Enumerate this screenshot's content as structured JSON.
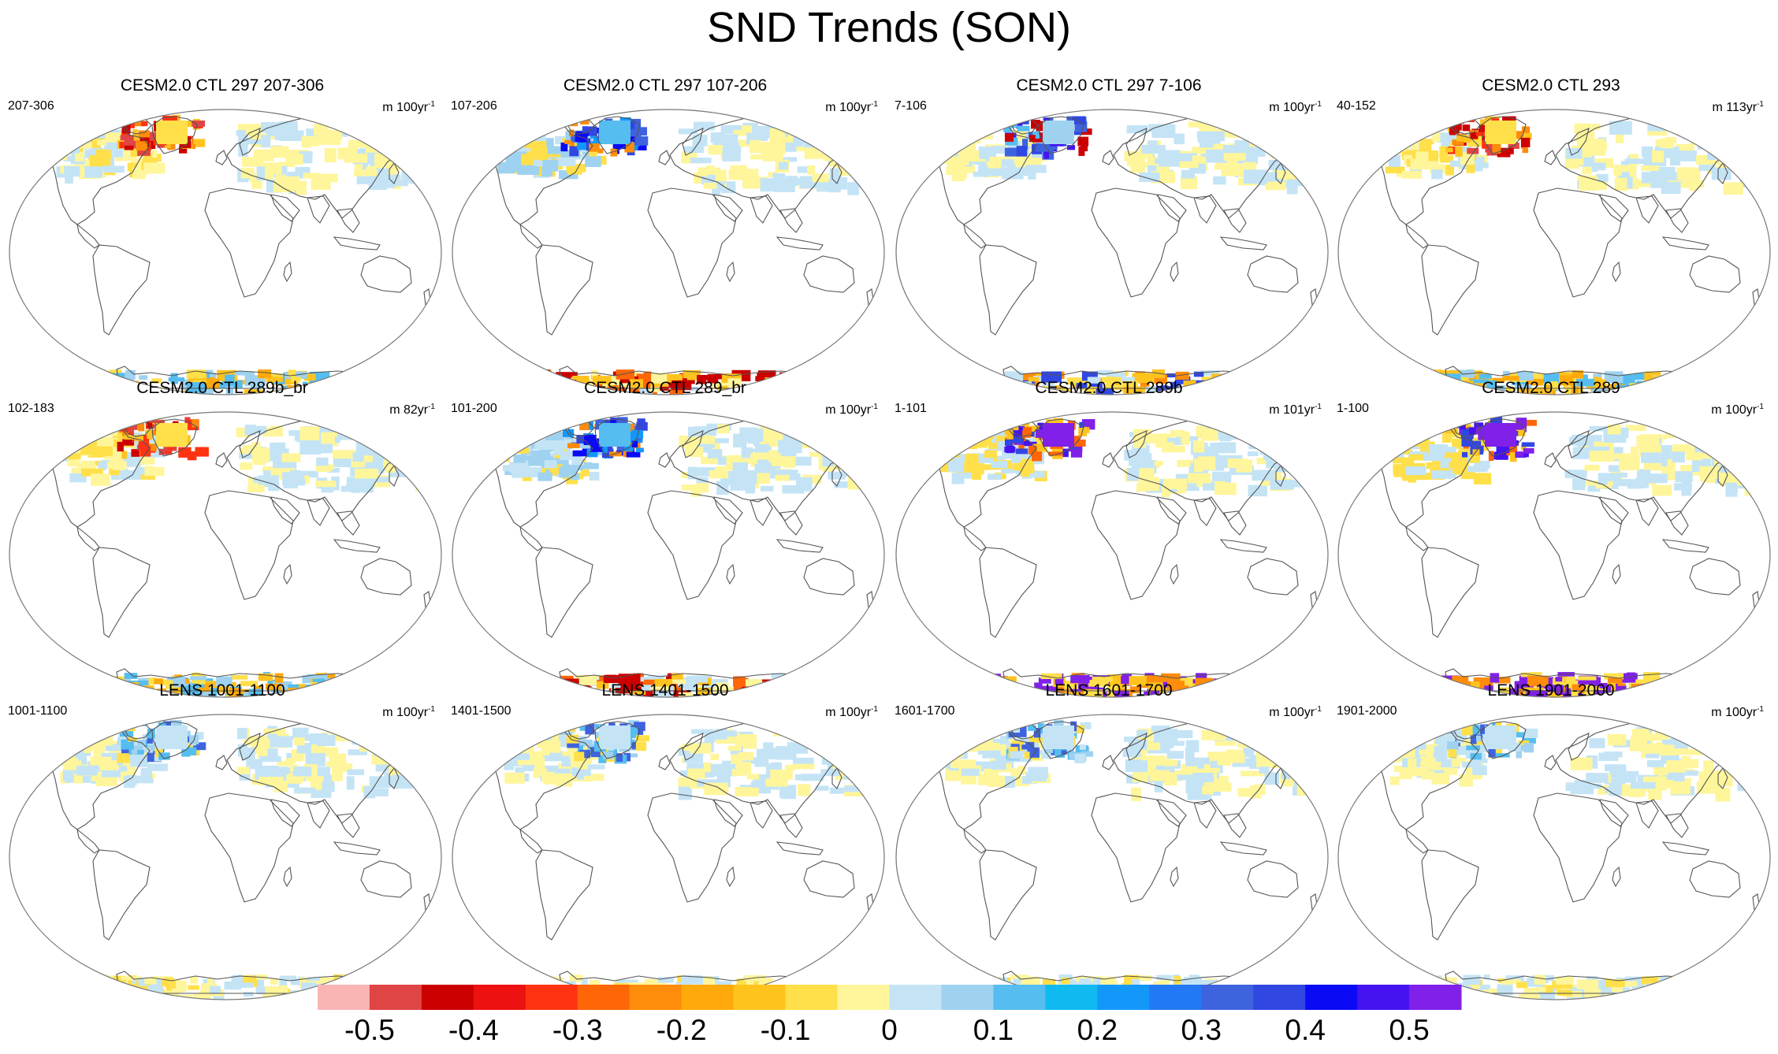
{
  "title": "SND Trends (SON)",
  "panels": [
    {
      "title": "CESM2.0 CTL 297 207-306",
      "left": "207-306",
      "right": "m 100yr",
      "scheme": "red"
    },
    {
      "title": "CESM2.0 CTL 297 107-206",
      "left": "107-206",
      "right": "m 100yr",
      "scheme": "blue"
    },
    {
      "title": "CESM2.0 CTL 297 7-106",
      "left": "7-106",
      "right": "m 100yr",
      "scheme": "purple"
    },
    {
      "title": "CESM2.0 CTL 293",
      "left": "40-152",
      "right": "m 113yr",
      "scheme": "red"
    },
    {
      "title": "CESM2.0 CTL 289b_br",
      "left": "102-183",
      "right": "m 82yr",
      "scheme": "red"
    },
    {
      "title": "CESM2.0 CTL 289_br",
      "left": "101-200",
      "right": "m 100yr",
      "scheme": "blue"
    },
    {
      "title": "CESM2.0 CTL 289b",
      "left": "1-101",
      "right": "m 101yr",
      "scheme": "violet"
    },
    {
      "title": "CESM2.0 CTL 289",
      "left": "1-100",
      "right": "m 100yr",
      "scheme": "violet"
    },
    {
      "title": "LENS 1001-1100",
      "left": "1001-1100",
      "right": "m 100yr",
      "scheme": "weak"
    },
    {
      "title": "LENS 1401-1500",
      "left": "1401-1500",
      "right": "m 100yr",
      "scheme": "weak"
    },
    {
      "title": "LENS 1601-1700",
      "left": "1601-1700",
      "right": "m 100yr",
      "scheme": "weak"
    },
    {
      "title": "LENS 1901-2000",
      "left": "1901-2000",
      "right": "m 100yr",
      "scheme": "weak"
    }
  ],
  "unit_exponent": "-1",
  "colorbar": {
    "colors": [
      "#fbb4b4",
      "#e04545",
      "#cc0000",
      "#ee1111",
      "#ff3311",
      "#ff6608",
      "#ff8c0a",
      "#ffa90a",
      "#ffc31e",
      "#ffe04a",
      "#fff59b",
      "#c4e4f6",
      "#9fd2f0",
      "#55bdef",
      "#10baf0",
      "#1398fa",
      "#2378f5",
      "#3e63de",
      "#3047e1",
      "#0a0af5",
      "#4513f0",
      "#8020e8"
    ],
    "ticks": [
      "-0.5",
      "-0.4",
      "-0.3",
      "-0.2",
      "-0.1",
      "0",
      "0.1",
      "0.2",
      "0.3",
      "0.4",
      "0.5"
    ]
  }
}
